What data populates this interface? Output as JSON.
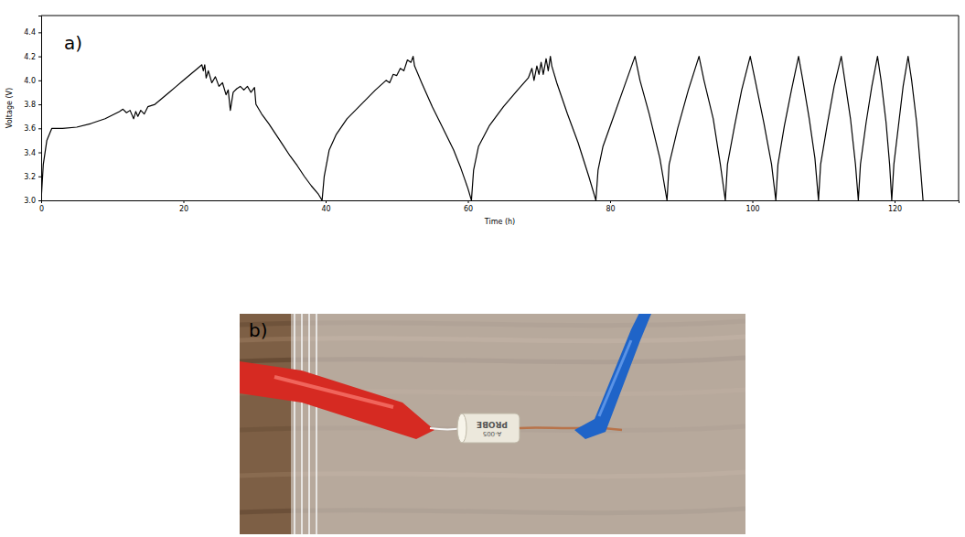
{
  "chart_data": {
    "type": "line",
    "panel_label": "a)",
    "x_label": "Time (h)",
    "y_label": "Voltage (V)",
    "color": "#000000",
    "xlim": [
      0,
      129
    ],
    "ylim": [
      3.0,
      4.54
    ],
    "xticks": [
      0,
      20,
      40,
      60,
      80,
      100,
      120
    ],
    "yticks": [
      {
        "value": 3,
        "label": "3.0"
      },
      3.2,
      3.4,
      3.6,
      3.8,
      {
        "value": 4,
        "label": "4.0"
      },
      4.2,
      4.4
    ],
    "x": [
      0,
      0.3,
      0.8,
      1.5,
      3,
      5,
      7,
      9,
      11,
      11.5,
      12,
      12.5,
      13,
      13.3,
      13.6,
      14,
      14.5,
      15,
      16,
      17,
      18,
      19,
      20,
      21,
      22,
      22.6,
      22.8,
      23,
      23.2,
      23.5,
      24,
      24.5,
      25,
      25.5,
      26,
      26.3,
      26.6,
      27,
      27.5,
      28,
      28.5,
      29,
      29.5,
      30,
      30.2,
      31,
      32,
      33,
      34,
      35,
      36,
      37,
      38,
      39,
      39.5,
      39.8,
      40.5,
      41.5,
      43,
      45,
      47,
      48.5,
      49,
      49.5,
      50,
      50.5,
      51,
      51.5,
      52,
      52.3,
      52.5,
      53.5,
      55,
      56.5,
      58,
      59,
      60,
      60.5,
      60.8,
      61.5,
      63,
      65,
      67,
      68.5,
      69,
      69.3,
      69.7,
      70,
      70.3,
      70.6,
      71,
      71.3,
      71.6,
      71.8,
      72.5,
      74,
      75.5,
      77,
      78,
      78.3,
      79,
      80.5,
      82,
      83.5,
      84.2,
      85.5,
      87,
      88,
      88.3,
      89.5,
      91,
      92.5,
      93.2,
      94.5,
      95.5,
      96.2,
      96.5,
      97.5,
      98.5,
      99.7,
      100.4,
      101.6,
      102.7,
      103.3,
      103.6,
      104.5,
      105.5,
      106.5,
      107.1,
      108,
      108.8,
      109.3,
      109.6,
      110.5,
      111.5,
      112.5,
      113,
      113.8,
      114.5,
      114.9,
      115.2,
      116,
      116.8,
      117.6,
      118.1,
      118.8,
      119.3,
      119.6,
      119.9,
      120.6,
      121.2,
      121.9,
      122.4,
      123.1,
      123.6,
      124
    ],
    "values": [
      3.0,
      3.3,
      3.5,
      3.6,
      3.6,
      3.61,
      3.64,
      3.68,
      3.74,
      3.76,
      3.73,
      3.75,
      3.68,
      3.74,
      3.7,
      3.75,
      3.72,
      3.78,
      3.8,
      3.85,
      3.9,
      3.95,
      4.0,
      4.05,
      4.1,
      4.13,
      4.08,
      4.13,
      4.02,
      4.08,
      3.98,
      4.03,
      3.95,
      3.98,
      3.88,
      3.92,
      3.75,
      3.9,
      3.93,
      3.95,
      3.92,
      3.95,
      3.9,
      3.94,
      3.8,
      3.72,
      3.64,
      3.55,
      3.46,
      3.37,
      3.29,
      3.2,
      3.12,
      3.05,
      3.0,
      3.2,
      3.42,
      3.55,
      3.68,
      3.8,
      3.92,
      4.0,
      3.98,
      4.05,
      4.04,
      4.1,
      4.08,
      4.17,
      4.15,
      4.2,
      4.12,
      3.98,
      3.78,
      3.6,
      3.42,
      3.27,
      3.1,
      3.0,
      3.25,
      3.45,
      3.62,
      3.78,
      3.92,
      4.02,
      4.1,
      4.0,
      4.12,
      4.05,
      4.15,
      4.05,
      4.18,
      4.08,
      4.2,
      4.12,
      3.98,
      3.72,
      3.48,
      3.2,
      3.0,
      3.25,
      3.45,
      3.7,
      3.95,
      4.2,
      4.0,
      3.72,
      3.35,
      3.0,
      3.3,
      3.6,
      3.92,
      4.2,
      4.0,
      3.68,
      3.3,
      3.0,
      3.3,
      3.62,
      3.92,
      4.2,
      4.0,
      3.65,
      3.3,
      3.0,
      3.3,
      3.62,
      3.92,
      4.2,
      4.0,
      3.68,
      3.35,
      3.0,
      3.3,
      3.62,
      3.95,
      4.2,
      4.0,
      3.68,
      3.3,
      3.0,
      3.3,
      3.65,
      3.95,
      4.2,
      4.0,
      3.65,
      3.3,
      3.0,
      3.3,
      3.65,
      3.95,
      4.2,
      4.0,
      3.65,
      3.3,
      3.0
    ]
  },
  "photo": {
    "panel_label": "b)",
    "texts": [
      "PROBE",
      "A-005"
    ]
  }
}
